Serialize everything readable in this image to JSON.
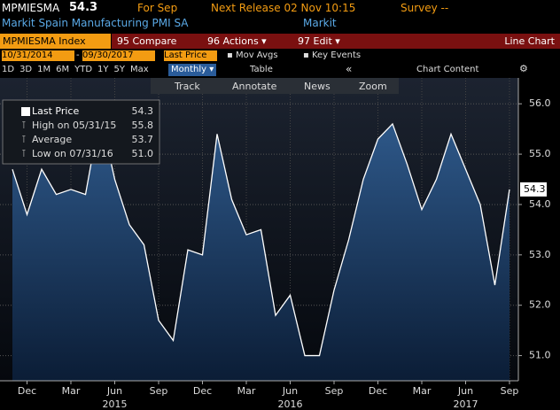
{
  "header": {
    "ticker": "MPMIESMA",
    "last": "54.3",
    "period": "For Sep",
    "next_release": "Next Release 02 Nov 10:15",
    "survey": "Survey --",
    "name": "Markit Spain Manufacturing PMI SA",
    "source": "Markit"
  },
  "toolbar": {
    "security": "MPMIESMA Index",
    "buttons": [
      "95 Compare",
      "96 Actions",
      "97 Edit"
    ],
    "chart_type": "Line Chart",
    "start_date": "10/31/2014",
    "end_date": "09/30/2017",
    "field": "Last Price",
    "mov_avgs": "Mov Avgs",
    "key_events": "Key Events",
    "periods": [
      "1D",
      "3D",
      "1M",
      "6M",
      "YTD",
      "1Y",
      "5Y",
      "Max"
    ],
    "frequency": "Monthly",
    "table": "Table",
    "collapse": "«",
    "chart_content": "Chart Content",
    "tools": [
      "Track",
      "Annotate",
      "News",
      "Zoom"
    ]
  },
  "chart_data": {
    "type": "area",
    "categories": [
      null,
      "Dec",
      null,
      null,
      "Mar",
      null,
      null,
      "Jun",
      null,
      null,
      "Sep",
      null,
      null,
      "Dec",
      null,
      null,
      "Mar",
      null,
      null,
      "Jun",
      null,
      null,
      "Sep",
      null,
      null,
      "Dec",
      null,
      null,
      "Mar",
      null,
      null,
      "Jun",
      null,
      null,
      "Sep"
    ],
    "x_groups": [
      null,
      null,
      null,
      null,
      null,
      null,
      null,
      "2015",
      null,
      null,
      null,
      null,
      null,
      null,
      null,
      null,
      null,
      null,
      null,
      "2016",
      null,
      null,
      null,
      null,
      null,
      null,
      null,
      null,
      null,
      null,
      null,
      "2017",
      null,
      null,
      null
    ],
    "series": [
      {
        "name": "Last Price",
        "color": "#ffffff",
        "values": [
          54.7,
          53.8,
          54.7,
          54.2,
          54.3,
          54.2,
          55.8,
          54.5,
          53.6,
          53.2,
          51.7,
          51.3,
          53.1,
          53.0,
          55.4,
          54.1,
          53.4,
          53.5,
          51.8,
          52.2,
          51.0,
          51.0,
          52.3,
          53.3,
          54.5,
          55.3,
          55.6,
          54.8,
          53.9,
          54.5,
          55.4,
          54.7,
          54.0,
          52.4,
          54.3
        ]
      }
    ],
    "legend": [
      {
        "label": "Last Price",
        "value": "54.3"
      },
      {
        "label": "High on 05/31/15",
        "value": "55.8"
      },
      {
        "label": "Average",
        "value": "53.7"
      },
      {
        "label": "Low on 07/31/16",
        "value": "51.0"
      }
    ],
    "ylim": [
      50.5,
      56.25
    ],
    "yticks": [
      {
        "value": 51,
        "label": "51.0"
      },
      {
        "value": 52,
        "label": "52.0"
      },
      {
        "value": 53,
        "label": "53.0"
      },
      {
        "value": 54,
        "label": "54.0"
      },
      {
        "value": 55,
        "label": "55.0"
      },
      {
        "value": 56,
        "label": "56.0"
      }
    ],
    "grid": true
  }
}
